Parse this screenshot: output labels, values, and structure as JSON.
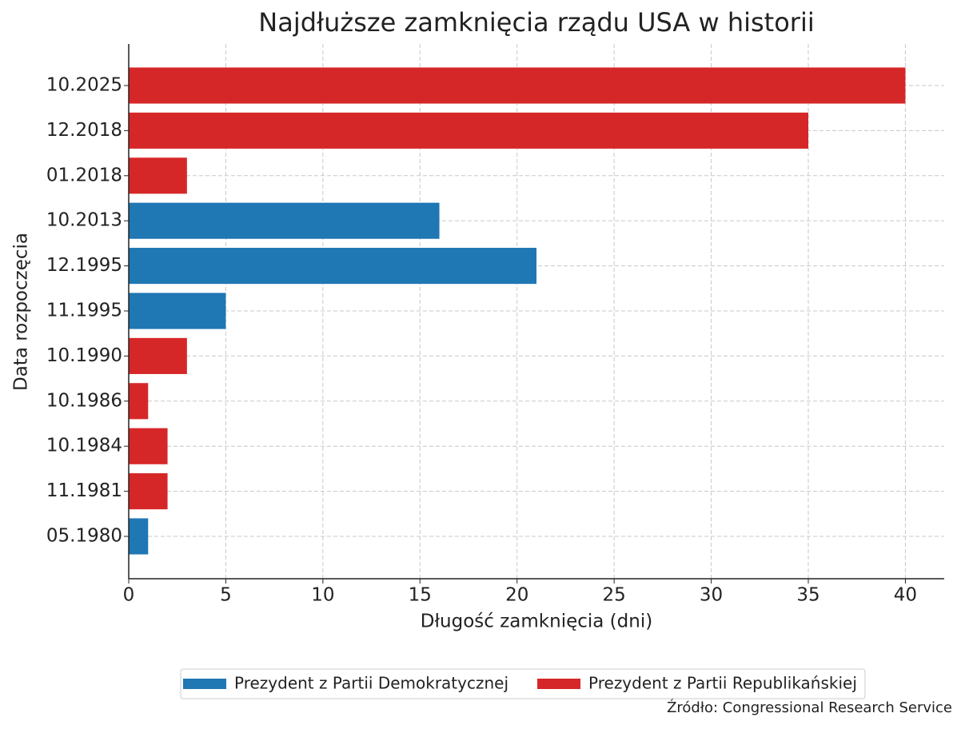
{
  "chart_data": {
    "type": "barh",
    "title": "Najdłuższe zamknięcia rządu USA w historii",
    "x_label": "Długość zamknięcia (dni)",
    "y_label": "Data rozpoczęcia",
    "source": "Źródło: Congressional Research Service",
    "categories": [
      "10.2025",
      "12.2018",
      "01.2018",
      "10.2013",
      "12.1995",
      "11.1995",
      "10.1990",
      "10.1986",
      "10.1984",
      "11.1981",
      "05.1980"
    ],
    "series": [
      {
        "name": "Prezydent z Partii Demokratycznej",
        "color": "#1f77b4",
        "values": [
          null,
          null,
          null,
          16,
          21,
          5,
          null,
          null,
          null,
          null,
          1
        ]
      },
      {
        "name": "Prezydent z Partii Republikańskiej",
        "color": "#d62728",
        "values": [
          40,
          35,
          3,
          null,
          null,
          null,
          3,
          1,
          2,
          2,
          null
        ]
      }
    ],
    "xlim": [
      0,
      42
    ],
    "xticks": [
      0,
      5,
      10,
      15,
      20,
      25,
      30,
      35,
      40
    ],
    "grid": true,
    "legend": "below"
  }
}
